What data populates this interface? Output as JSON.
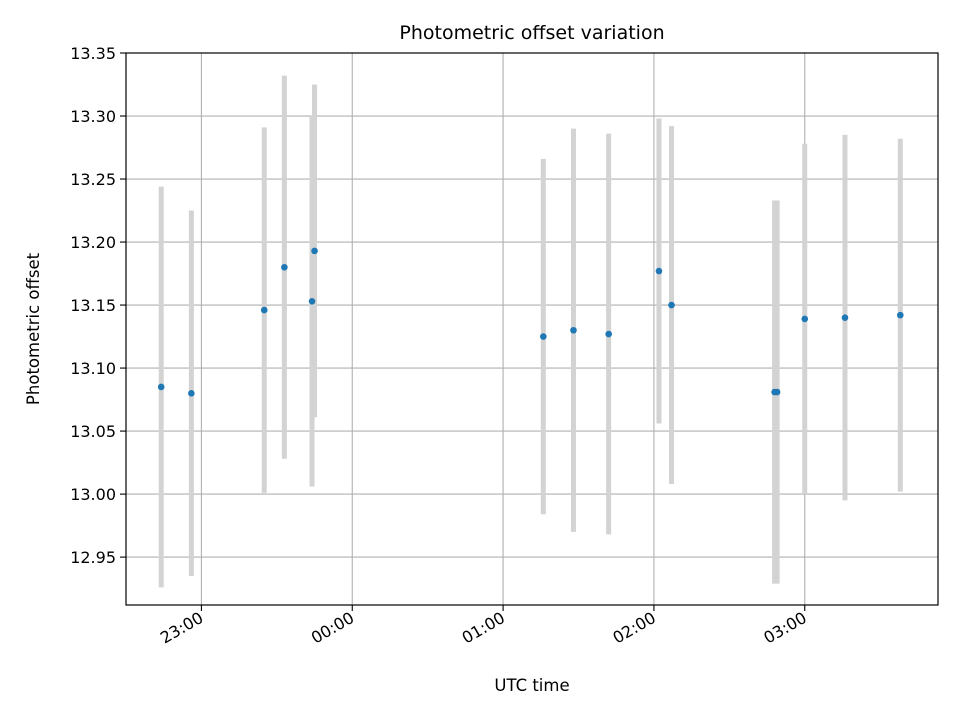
{
  "chart_data": {
    "type": "scatter",
    "title": "Photometric offset variation",
    "xlabel": "UTC time",
    "ylabel": "Photometric offset",
    "x_ticks": [
      "23:00",
      "00:00",
      "01:00",
      "02:00",
      "03:00"
    ],
    "y_ticks": [
      "12.95",
      "13.00",
      "13.05",
      "13.10",
      "13.15",
      "13.20",
      "13.25",
      "13.30",
      "13.35"
    ],
    "xlim": [
      "22:30",
      "03:53"
    ],
    "ylim": [
      12.912,
      13.35
    ],
    "grid": true,
    "colors": {
      "point": "#1f77b4",
      "errorbar": "#d3d3d3",
      "grid": "#b0b0b0"
    },
    "series": [
      {
        "points": [
          {
            "x": "22:44",
            "y": 13.085,
            "yerr": 0.159
          },
          {
            "x": "22:56",
            "y": 13.08,
            "yerr": 0.145
          },
          {
            "x": "23:25",
            "y": 13.146,
            "yerr": 0.145
          },
          {
            "x": "23:33",
            "y": 13.18,
            "yerr": 0.152
          },
          {
            "x": "23:44",
            "y": 13.153,
            "yerr": 0.147
          },
          {
            "x": "23:45",
            "y": 13.193,
            "yerr": 0.132
          },
          {
            "x": "01:16",
            "y": 13.125,
            "yerr": 0.141
          },
          {
            "x": "01:28",
            "y": 13.13,
            "yerr": 0.16
          },
          {
            "x": "01:42",
            "y": 13.127,
            "yerr": 0.159
          },
          {
            "x": "02:02",
            "y": 13.177,
            "yerr": 0.121
          },
          {
            "x": "02:07",
            "y": 13.15,
            "yerr": 0.142
          },
          {
            "x": "02:48",
            "y": 13.081,
            "yerr": 0.152
          },
          {
            "x": "02:49",
            "y": 13.081,
            "yerr": 0.152
          },
          {
            "x": "03:00",
            "y": 13.139,
            "yerr": 0.139
          },
          {
            "x": "03:16",
            "y": 13.14,
            "yerr": 0.145
          },
          {
            "x": "03:38",
            "y": 13.142,
            "yerr": 0.14
          }
        ]
      }
    ]
  }
}
